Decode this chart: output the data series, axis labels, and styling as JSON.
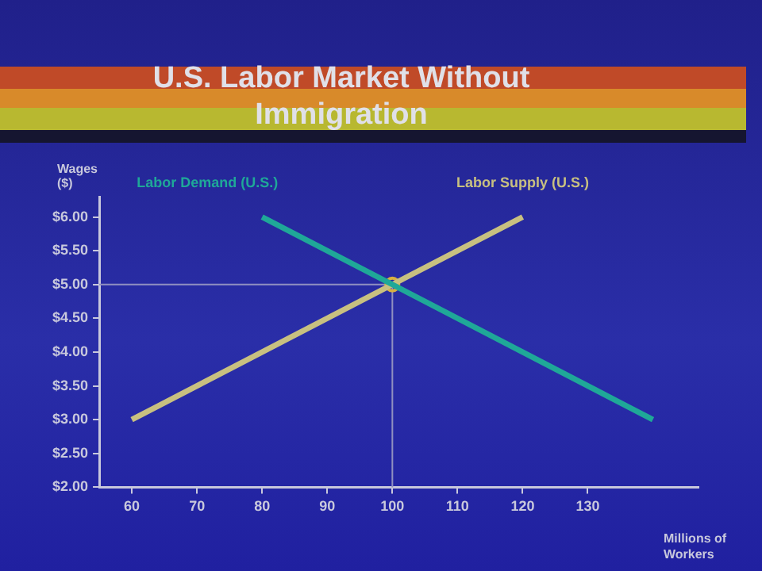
{
  "chart_data": {
    "type": "line",
    "title": "U.S. Labor Market Without Immigration",
    "xlabel": "Millions of Workers",
    "ylabel": "Wages ($)",
    "xlim": [
      55,
      147
    ],
    "xticks": [
      60,
      70,
      80,
      90,
      100,
      110,
      120,
      130
    ],
    "ylim": [
      2,
      6.3
    ],
    "yticks": [
      {
        "value": 2,
        "label": "$2.00"
      },
      {
        "value": 2.5,
        "label": "$2.50"
      },
      {
        "value": 3,
        "label": "$3.00"
      },
      {
        "value": 3.5,
        "label": "$3.50"
      },
      {
        "value": 4,
        "label": "$4.00"
      },
      {
        "value": 4.5,
        "label": "$4.50"
      },
      {
        "value": 5,
        "label": "$5.00"
      },
      {
        "value": 5.5,
        "label": "$5.50"
      },
      {
        "value": 6,
        "label": "$6.00"
      }
    ],
    "series": [
      {
        "name": "Labor Demand (U.S.)",
        "color": "#1fa898",
        "x": [
          80,
          140
        ],
        "values": [
          6,
          3
        ]
      },
      {
        "name": "Labor Supply (U.S.)",
        "color": "#c8c080",
        "x": [
          60,
          120
        ],
        "values": [
          3,
          6
        ]
      },
      {
        "type": "scatter",
        "color": "#d8b040",
        "marker": "circle",
        "x": [
          100
        ],
        "values": [
          5
        ]
      }
    ],
    "ref_lines": [
      {
        "axis": "x",
        "value": 100,
        "color": "#9090c0"
      },
      {
        "axis": "y",
        "value": 5,
        "color": "#9090c0"
      }
    ],
    "marker": "none",
    "line_style": "solid",
    "legend": false
  }
}
